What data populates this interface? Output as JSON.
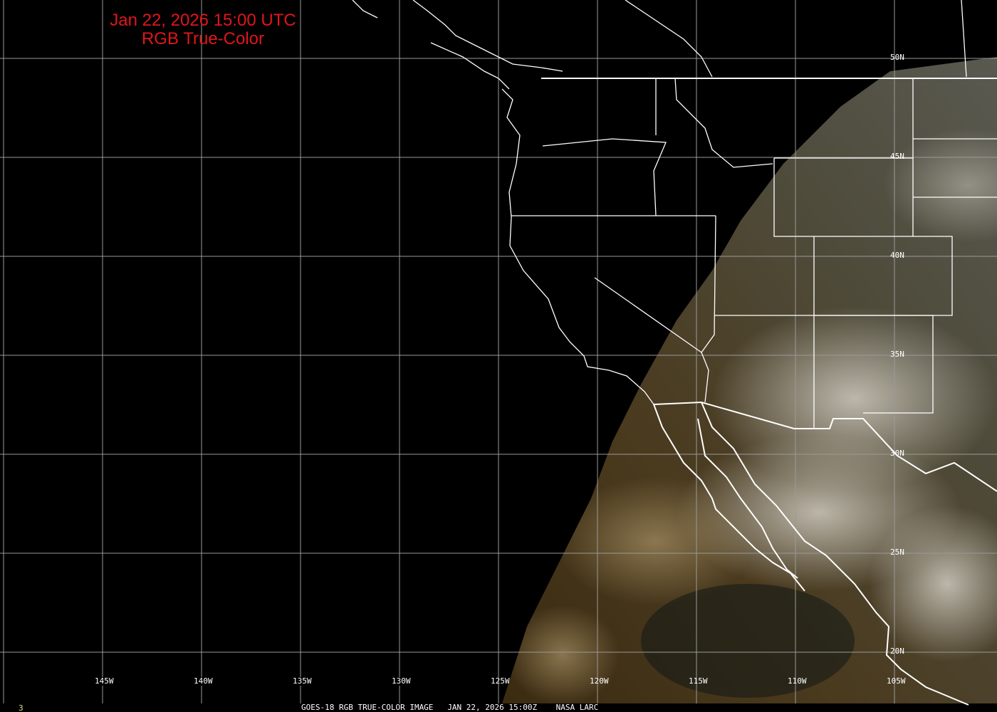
{
  "header": {
    "date_line": "Jan 22, 2026 15:00 UTC",
    "product": "RGB True-Color"
  },
  "longitude_labels": [
    "145W",
    "140W",
    "135W",
    "130W",
    "125W",
    "120W",
    "115W",
    "110W",
    "105W"
  ],
  "latitude_labels": [
    "50N",
    "45N",
    "40N",
    "35N",
    "30N",
    "25N",
    "20N"
  ],
  "footer": {
    "satellite": "GOES-18 RGB TRUE-COLOR IMAGE",
    "timestamp": "JAN 22, 2026 15:00Z",
    "source": "NASA LARC"
  },
  "frame_number": "3",
  "colors": {
    "title": "#e0161a",
    "grid": "#9a9a9a",
    "borders": "#ffffff",
    "background": "#000000"
  }
}
